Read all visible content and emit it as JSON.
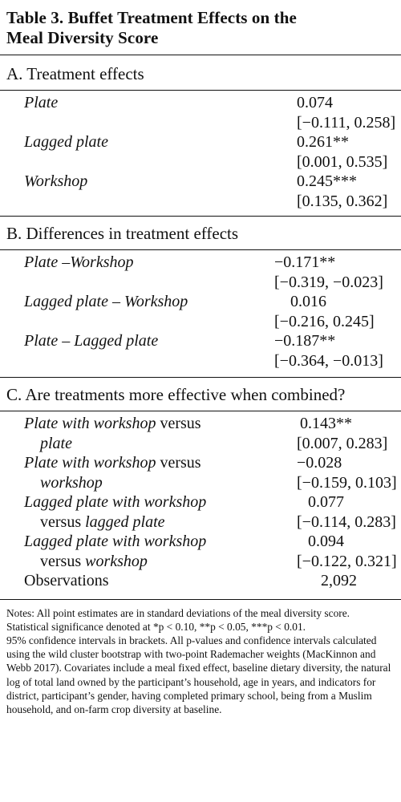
{
  "title": {
    "line1": "Table 3.  Buffet Treatment Effects on the",
    "line2": "Meal Diversity Score"
  },
  "sectionA": {
    "heading": "A. Treatment effects",
    "rows": [
      {
        "label": "Plate",
        "value": "0.074",
        "ci": "[−0.111, 0.258]"
      },
      {
        "label": "Lagged plate",
        "value": "0.261**",
        "ci": "[0.001, 0.535]"
      },
      {
        "label": "Workshop",
        "value": "0.245***",
        "ci": "[0.135, 0.362]"
      }
    ]
  },
  "sectionB": {
    "heading": "B. Differences in treatment effects",
    "rows": [
      {
        "label": "Plate –Workshop",
        "value": "−0.171**",
        "ci": "[−0.319, −0.023]"
      },
      {
        "label": "Lagged plate – Workshop",
        "value": "0.016",
        "ci": "[−0.216, 0.245]"
      },
      {
        "label": "Plate – Lagged plate",
        "value": "−0.187**",
        "ci": "[−0.364, −0.013]"
      }
    ]
  },
  "sectionC": {
    "heading": "C. Are treatments more effective when combined?",
    "rows": [
      {
        "l1_it": "Plate with workshop",
        "l1_rest": " versus",
        "l2_pre": "",
        "l2_it": "plate",
        "value": "0.143**",
        "ci": "[0.007, 0.283]"
      },
      {
        "l1_it": "Plate with workshop",
        "l1_rest": " versus",
        "l2_pre": "",
        "l2_it": "workshop",
        "value": "−0.028",
        "ci": "[−0.159, 0.103]"
      },
      {
        "l1_it": "Lagged plate with workshop",
        "l1_rest": "",
        "l2_pre": "versus ",
        "l2_it": "lagged plate",
        "value": "0.077",
        "ci": "[−0.114, 0.283]"
      },
      {
        "l1_it": "Lagged plate with workshop",
        "l1_rest": "",
        "l2_pre": "versus ",
        "l2_it": "workshop",
        "value": "0.094",
        "ci": "[−0.122, 0.321]"
      }
    ],
    "observations": {
      "label": "Observations",
      "value": "2,092"
    }
  },
  "notes": [
    "Notes: All point estimates are in standard deviations of the meal diversity score.",
    "Statistical significance denoted at *p < 0.10, **p < 0.05, ***p < 0.01.",
    "95% confidence intervals in brackets. All p-values and confidence intervals calculated using the wild cluster bootstrap with two-point Rademacher weights (MacKinnon and Webb 2017). Covariates include a meal fixed effect, baseline dietary diversity, the natural log of total land owned by the participant’s household, age in years, and indicators for district, participant’s gender, having completed primary school, being from a Muslim household, and on-farm crop diversity at baseline."
  ]
}
